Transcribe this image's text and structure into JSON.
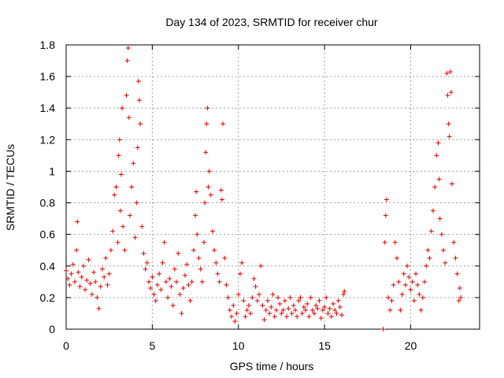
{
  "chart_data": {
    "type": "scatter",
    "title": "Day 134 of 2023, SRMTID for receiver chur",
    "xlabel": "GPS time / hours",
    "ylabel": "SRMTID / TECUs",
    "xlim": [
      0,
      24
    ],
    "ylim": [
      0,
      1.8
    ],
    "xticks": [
      0,
      5,
      10,
      15,
      20
    ],
    "xtick_labels": [
      "0",
      "5",
      "10",
      "15",
      "20"
    ],
    "yticks": [
      0,
      0.2,
      0.4,
      0.6,
      0.8,
      1.0,
      1.2,
      1.4,
      1.6,
      1.8
    ],
    "ytick_labels": [
      "0",
      "0.2",
      "0.4",
      "0.6",
      "0.8",
      "1",
      "1.2",
      "1.4",
      "1.6",
      "1.8"
    ],
    "grid": true,
    "marker": "plus",
    "color": "#e00000",
    "series": [
      {
        "name": "SRMTID",
        "points": [
          [
            0.0,
            0.37
          ],
          [
            0.1,
            0.32
          ],
          [
            0.2,
            0.28
          ],
          [
            0.3,
            0.35
          ],
          [
            0.4,
            0.41
          ],
          [
            0.5,
            0.3
          ],
          [
            0.6,
            0.5
          ],
          [
            0.65,
            0.68
          ],
          [
            0.7,
            0.36
          ],
          [
            0.8,
            0.27
          ],
          [
            0.9,
            0.33
          ],
          [
            1.0,
            0.4
          ],
          [
            1.1,
            0.25
          ],
          [
            1.2,
            0.31
          ],
          [
            1.3,
            0.44
          ],
          [
            1.4,
            0.29
          ],
          [
            1.5,
            0.22
          ],
          [
            1.6,
            0.36
          ],
          [
            1.7,
            0.3
          ],
          [
            1.8,
            0.2
          ],
          [
            1.9,
            0.13
          ],
          [
            2.0,
            0.27
          ],
          [
            2.1,
            0.38
          ],
          [
            2.2,
            0.33
          ],
          [
            2.3,
            0.45
          ],
          [
            2.4,
            0.28
          ],
          [
            2.5,
            0.35
          ],
          [
            2.6,
            0.5
          ],
          [
            2.7,
            0.62
          ],
          [
            2.8,
            0.85
          ],
          [
            2.9,
            0.9
          ],
          [
            3.0,
            0.55
          ],
          [
            3.05,
            1.1
          ],
          [
            3.1,
            1.2
          ],
          [
            3.15,
            0.75
          ],
          [
            3.2,
            0.98
          ],
          [
            3.25,
            1.4
          ],
          [
            3.3,
            0.65
          ],
          [
            3.4,
            0.5
          ],
          [
            3.5,
            1.48
          ],
          [
            3.55,
            1.7
          ],
          [
            3.6,
            1.78
          ],
          [
            3.65,
            1.34
          ],
          [
            3.7,
            0.72
          ],
          [
            3.8,
            0.9
          ],
          [
            3.9,
            1.05
          ],
          [
            4.0,
            0.58
          ],
          [
            4.1,
            0.8
          ],
          [
            4.15,
            1.15
          ],
          [
            4.2,
            1.57
          ],
          [
            4.25,
            1.45
          ],
          [
            4.3,
            1.3
          ],
          [
            4.4,
            0.65
          ],
          [
            4.5,
            0.48
          ],
          [
            4.6,
            0.38
          ],
          [
            4.7,
            0.42
          ],
          [
            4.8,
            0.3
          ],
          [
            4.9,
            0.26
          ],
          [
            5.0,
            0.33
          ],
          [
            5.1,
            0.22
          ],
          [
            5.2,
            0.18
          ],
          [
            5.3,
            0.28
          ],
          [
            5.4,
            0.35
          ],
          [
            5.5,
            0.25
          ],
          [
            5.6,
            0.42
          ],
          [
            5.7,
            0.55
          ],
          [
            5.8,
            0.3
          ],
          [
            5.9,
            0.2
          ],
          [
            6.0,
            0.32
          ],
          [
            6.1,
            0.27
          ],
          [
            6.2,
            0.15
          ],
          [
            6.3,
            0.38
          ],
          [
            6.4,
            0.3
          ],
          [
            6.5,
            0.48
          ],
          [
            6.6,
            0.22
          ],
          [
            6.7,
            0.1
          ],
          [
            6.8,
            0.26
          ],
          [
            6.9,
            0.34
          ],
          [
            7.0,
            0.41
          ],
          [
            7.1,
            0.28
          ],
          [
            7.2,
            0.18
          ],
          [
            7.3,
            0.3
          ],
          [
            7.4,
            0.5
          ],
          [
            7.5,
            0.72
          ],
          [
            7.55,
            0.87
          ],
          [
            7.6,
            0.6
          ],
          [
            7.7,
            0.45
          ],
          [
            7.8,
            0.38
          ],
          [
            7.9,
            0.3
          ],
          [
            8.0,
            0.55
          ],
          [
            8.05,
            0.8
          ],
          [
            8.1,
            1.12
          ],
          [
            8.15,
            1.3
          ],
          [
            8.2,
            1.4
          ],
          [
            8.25,
            0.9
          ],
          [
            8.3,
            1.0
          ],
          [
            8.4,
            0.85
          ],
          [
            8.5,
            0.62
          ],
          [
            8.6,
            0.5
          ],
          [
            8.7,
            0.42
          ],
          [
            8.8,
            0.35
          ],
          [
            8.9,
            0.3
          ],
          [
            9.0,
            0.88
          ],
          [
            9.05,
            0.82
          ],
          [
            9.1,
            1.3
          ],
          [
            9.2,
            0.45
          ],
          [
            9.3,
            0.28
          ],
          [
            9.4,
            0.2
          ],
          [
            9.5,
            0.12
          ],
          [
            9.6,
            0.08
          ],
          [
            9.7,
            0.15
          ],
          [
            9.8,
            0.05
          ],
          [
            9.9,
            0.1
          ],
          [
            10.0,
            0.22
          ],
          [
            10.1,
            0.35
          ],
          [
            10.2,
            0.42
          ],
          [
            10.3,
            0.18
          ],
          [
            10.4,
            0.08
          ],
          [
            10.5,
            0.12
          ],
          [
            10.6,
            0.15
          ],
          [
            10.7,
            0.1
          ],
          [
            10.8,
            0.2
          ],
          [
            10.9,
            0.32
          ],
          [
            11.0,
            0.27
          ],
          [
            11.1,
            0.18
          ],
          [
            11.2,
            0.22
          ],
          [
            11.3,
            0.4
          ],
          [
            11.4,
            0.15
          ],
          [
            11.5,
            0.06
          ],
          [
            11.6,
            0.12
          ],
          [
            11.7,
            0.18
          ],
          [
            11.8,
            0.1
          ],
          [
            11.9,
            0.14
          ],
          [
            12.0,
            0.22
          ],
          [
            12.1,
            0.08
          ],
          [
            12.2,
            0.12
          ],
          [
            12.3,
            0.2
          ],
          [
            12.4,
            0.16
          ],
          [
            12.5,
            0.1
          ],
          [
            12.6,
            0.12
          ],
          [
            12.7,
            0.18
          ],
          [
            12.8,
            0.08
          ],
          [
            12.9,
            0.13
          ],
          [
            13.0,
            0.2
          ],
          [
            13.1,
            0.1
          ],
          [
            13.2,
            0.15
          ],
          [
            13.3,
            0.12
          ],
          [
            13.4,
            0.08
          ],
          [
            13.5,
            0.18
          ],
          [
            13.6,
            0.2
          ],
          [
            13.7,
            0.1
          ],
          [
            13.8,
            0.14
          ],
          [
            13.9,
            0.12
          ],
          [
            14.0,
            0.16
          ],
          [
            14.1,
            0.08
          ],
          [
            14.2,
            0.2
          ],
          [
            14.3,
            0.12
          ],
          [
            14.4,
            0.1
          ],
          [
            14.5,
            0.15
          ],
          [
            14.6,
            0.13
          ],
          [
            14.7,
            0.18
          ],
          [
            14.8,
            0.07
          ],
          [
            14.9,
            0.12
          ],
          [
            15.0,
            0.14
          ],
          [
            15.1,
            0.2
          ],
          [
            15.2,
            0.1
          ],
          [
            15.3,
            0.13
          ],
          [
            15.4,
            0.08
          ],
          [
            15.5,
            0.16
          ],
          [
            15.6,
            0.12
          ],
          [
            15.7,
            0.1
          ],
          [
            15.8,
            0.18
          ],
          [
            15.9,
            0.14
          ],
          [
            16.0,
            0.09
          ],
          [
            16.1,
            0.22
          ],
          [
            16.15,
            0.24
          ],
          [
            18.4,
            0.0
          ],
          [
            18.5,
            0.55
          ],
          [
            18.55,
            0.72
          ],
          [
            18.6,
            0.82
          ],
          [
            18.7,
            0.2
          ],
          [
            18.8,
            0.12
          ],
          [
            18.9,
            0.18
          ],
          [
            19.0,
            0.28
          ],
          [
            19.1,
            0.55
          ],
          [
            19.2,
            0.45
          ],
          [
            19.3,
            0.3
          ],
          [
            19.4,
            0.12
          ],
          [
            19.5,
            0.22
          ],
          [
            19.6,
            0.35
          ],
          [
            19.7,
            0.28
          ],
          [
            19.8,
            0.4
          ],
          [
            19.9,
            0.33
          ],
          [
            20.0,
            0.25
          ],
          [
            20.1,
            0.3
          ],
          [
            20.2,
            0.18
          ],
          [
            20.3,
            0.35
          ],
          [
            20.4,
            0.28
          ],
          [
            20.5,
            0.22
          ],
          [
            20.6,
            0.12
          ],
          [
            20.7,
            0.2
          ],
          [
            20.8,
            0.3
          ],
          [
            20.9,
            0.4
          ],
          [
            21.0,
            0.5
          ],
          [
            21.1,
            0.45
          ],
          [
            21.2,
            0.62
          ],
          [
            21.3,
            0.75
          ],
          [
            21.4,
            0.9
          ],
          [
            21.5,
            1.1
          ],
          [
            21.6,
            1.18
          ],
          [
            21.65,
            0.95
          ],
          [
            21.7,
            0.7
          ],
          [
            21.8,
            0.6
          ],
          [
            21.9,
            0.5
          ],
          [
            22.0,
            0.42
          ],
          [
            22.1,
            1.62
          ],
          [
            22.15,
            1.48
          ],
          [
            22.2,
            1.3
          ],
          [
            22.25,
            1.22
          ],
          [
            22.3,
            1.63
          ],
          [
            22.35,
            1.5
          ],
          [
            22.4,
            0.92
          ],
          [
            22.5,
            0.55
          ],
          [
            22.6,
            0.45
          ],
          [
            22.7,
            0.35
          ],
          [
            22.8,
            0.18
          ],
          [
            22.85,
            0.26
          ],
          [
            22.9,
            0.2
          ]
        ]
      }
    ]
  }
}
